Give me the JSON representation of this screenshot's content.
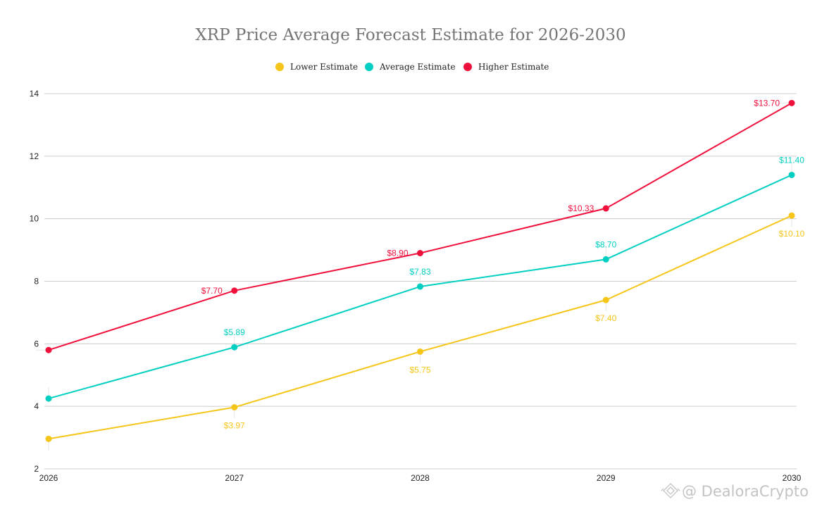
{
  "chart_data": {
    "type": "line",
    "title": "XRP Price Average Forecast Estimate for 2026-2030",
    "xlabel": "",
    "ylabel": "",
    "x": [
      "2026",
      "2027",
      "2028",
      "2029",
      "2030"
    ],
    "ylim": [
      2,
      14
    ],
    "yticks": [
      2,
      4,
      6,
      8,
      10,
      12,
      14
    ],
    "grid": true,
    "legend_position": "top-center",
    "series": [
      {
        "name": "Lower Estimate",
        "color": "#F6C519",
        "values": [
          2.96,
          3.97,
          5.75,
          7.4,
          10.1
        ],
        "labels": [
          null,
          "$3.97",
          "$5.75",
          "$7.40",
          "$10.10"
        ],
        "label_position": "below"
      },
      {
        "name": "Average Estimate",
        "color": "#00CFC1",
        "values": [
          4.25,
          5.89,
          7.83,
          8.7,
          11.4
        ],
        "labels": [
          null,
          "$5.89",
          "$7.83",
          "$8.70",
          "$11.40"
        ],
        "label_position": "above"
      },
      {
        "name": "Higher Estimate",
        "color": "#F0103C",
        "values": [
          5.8,
          7.7,
          8.9,
          10.33,
          13.7
        ],
        "labels": [
          null,
          "$7.70",
          "$8.90",
          "$10.33",
          "$13.70"
        ],
        "label_position": "left"
      }
    ]
  },
  "watermark": {
    "text": "@ DealoraCrypto",
    "icon": "binance-logo-icon"
  }
}
